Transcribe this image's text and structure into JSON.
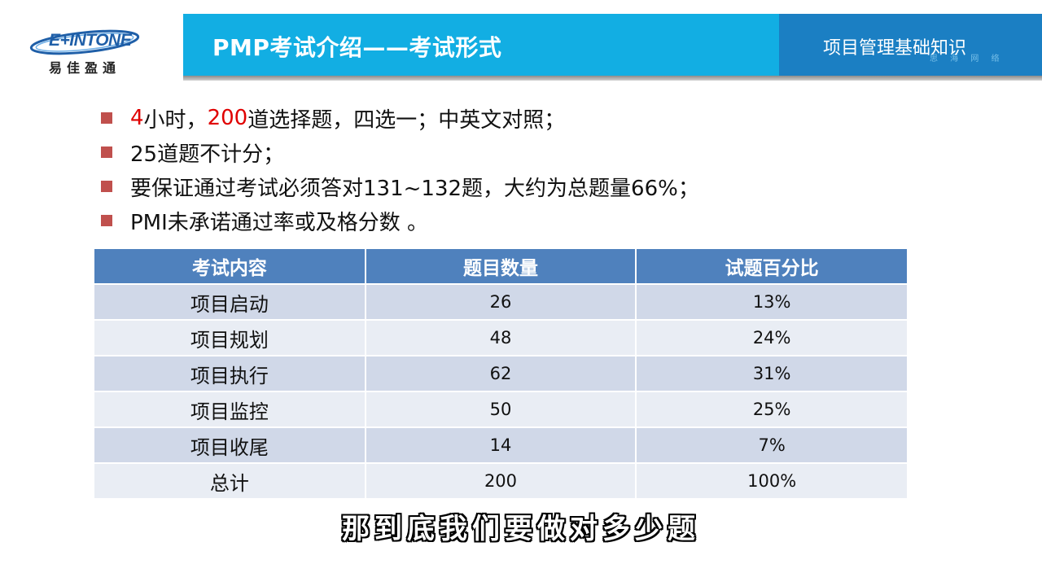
{
  "logo": {
    "wordmark": "E+INTONE",
    "subtitle": "易佳盈通",
    "brand_color": "#1f5fa8"
  },
  "header": {
    "title": "PMP考试介绍——考试形式",
    "right_label": "项目管理基础知识",
    "watermark": "思 海 网 络",
    "main_color": "#12aee3",
    "right_color": "#1b7fc3"
  },
  "bullets": [
    {
      "parts": [
        {
          "text": "4",
          "color": "red"
        },
        {
          "text": "小时，"
        },
        {
          "text": "200",
          "color": "red"
        },
        {
          "text": "道选择题，四选一；中英文对照；"
        }
      ]
    },
    {
      "parts": [
        {
          "text": "25道题不计分；"
        }
      ]
    },
    {
      "parts": [
        {
          "text": "要保证通过考试必须答对131~132题，大约为总题量66%；"
        }
      ]
    },
    {
      "parts": [
        {
          "text": "PMI未承诺通过率或及格分数 。"
        }
      ]
    }
  ],
  "bullet_color": "#c0504d",
  "table": {
    "headers": [
      "考试内容",
      "题目数量",
      "试题百分比"
    ],
    "rows": [
      [
        "项目启动",
        "26",
        "13%"
      ],
      [
        "项目规划",
        "48",
        "24%"
      ],
      [
        "项目执行",
        "62",
        "31%"
      ],
      [
        "项目监控",
        "50",
        "25%"
      ],
      [
        "项目收尾",
        "14",
        "7%"
      ],
      [
        "总计",
        "200",
        "100%"
      ]
    ],
    "header_color": "#4f81bd"
  },
  "subtitle": "那到底我们要做对多少题"
}
